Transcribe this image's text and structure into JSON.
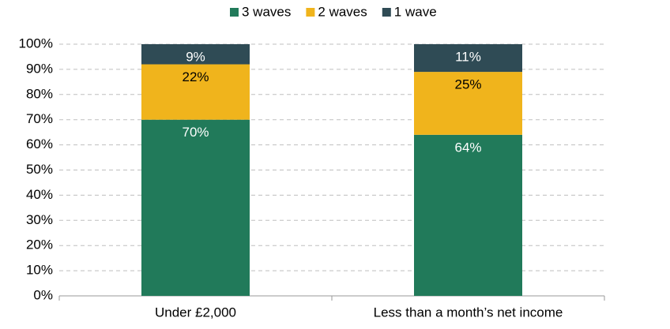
{
  "chart_data": {
    "type": "stacked-bar",
    "categories": [
      "Under £2,000",
      "Less than a month’s net income"
    ],
    "series": [
      {
        "name": "3 waves",
        "color": "#217a5a",
        "values": [
          70,
          64
        ],
        "value_labels": [
          "70%",
          "64%"
        ]
      },
      {
        "name": "2 waves",
        "color": "#f0b41c",
        "values": [
          22,
          25
        ],
        "value_labels": [
          "22%",
          "25%"
        ]
      },
      {
        "name": "1 wave",
        "color": "#2f4b55",
        "values": [
          9,
          11
        ],
        "value_labels": [
          "9%",
          "11%"
        ]
      }
    ],
    "ylim": [
      0,
      100
    ],
    "yticks": [
      {
        "value": 0,
        "label": "0%"
      },
      {
        "value": 10,
        "label": "10%"
      },
      {
        "value": 20,
        "label": "20%"
      },
      {
        "value": 30,
        "label": "30%"
      },
      {
        "value": 40,
        "label": "40%"
      },
      {
        "value": 50,
        "label": "50%"
      },
      {
        "value": 60,
        "label": "60%"
      },
      {
        "value": 70,
        "label": "70%"
      },
      {
        "value": 80,
        "label": "80%"
      },
      {
        "value": 90,
        "label": "90%"
      },
      {
        "value": 100,
        "label": "100%"
      }
    ],
    "grid": true,
    "legend": "top"
  }
}
